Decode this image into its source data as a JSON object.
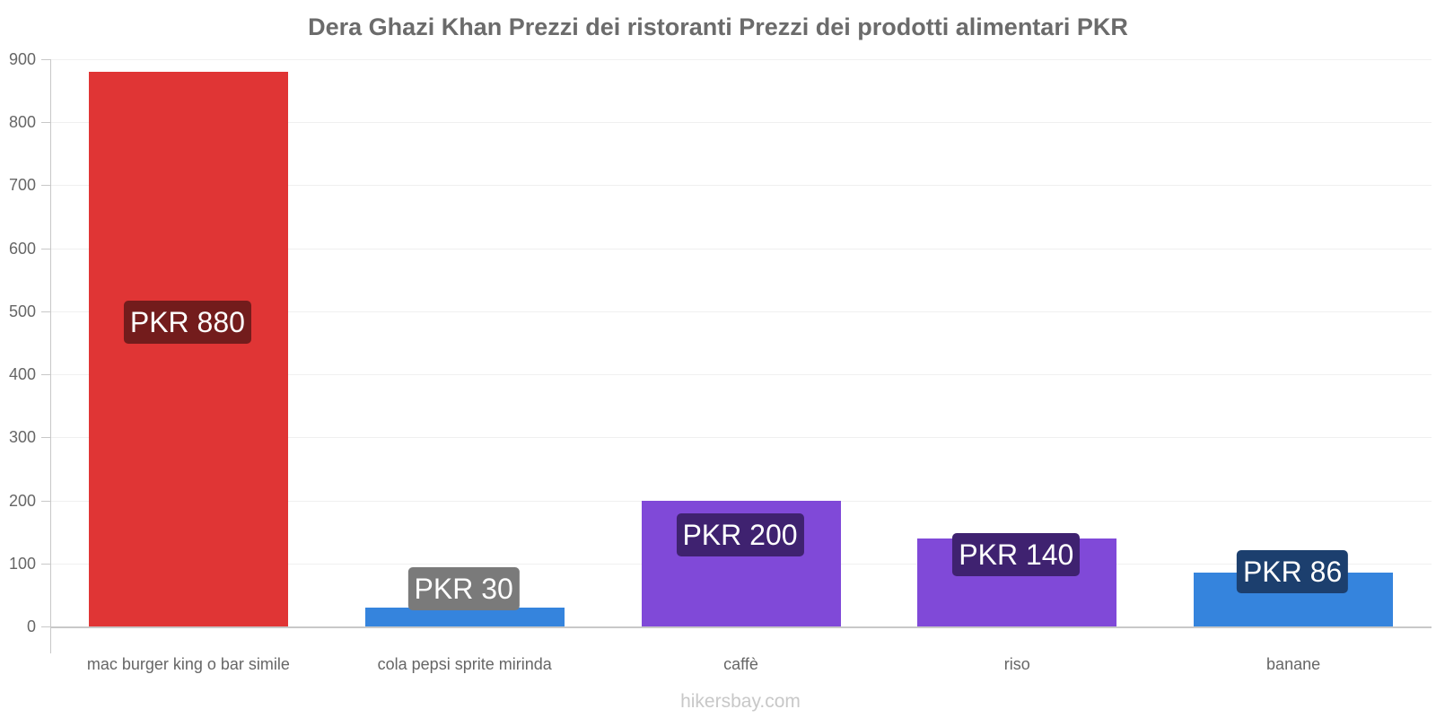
{
  "chart_data": {
    "type": "bar",
    "title": "Dera Ghazi Khan Prezzi dei ristoranti Prezzi dei prodotti alimentari PKR",
    "xlabel": "",
    "ylabel": "",
    "ylim": [
      0,
      900
    ],
    "yticks": [
      0,
      100,
      200,
      300,
      400,
      500,
      600,
      700,
      800,
      900
    ],
    "grid": true,
    "legend": null,
    "categories": [
      "mac burger king o bar simile",
      "cola pepsi sprite mirinda",
      "caffè",
      "riso",
      "banane"
    ],
    "values": [
      880,
      30,
      200,
      140,
      86
    ],
    "value_labels": [
      "PKR 880",
      "PKR 30",
      "PKR 200",
      "PKR 140",
      "PKR 86"
    ],
    "bar_colors": [
      "#e03535",
      "#3584dd",
      "#8049d8",
      "#8049d8",
      "#3584dd"
    ],
    "badge_colors": [
      "#731c1c",
      "#7a7a7a",
      "#3f2270",
      "#3f2270",
      "#1c3f6e"
    ]
  },
  "title": "Dera Ghazi Khan Prezzi dei ristoranti Prezzi dei prodotti alimentari PKR",
  "footer": "hikersbay.com"
}
